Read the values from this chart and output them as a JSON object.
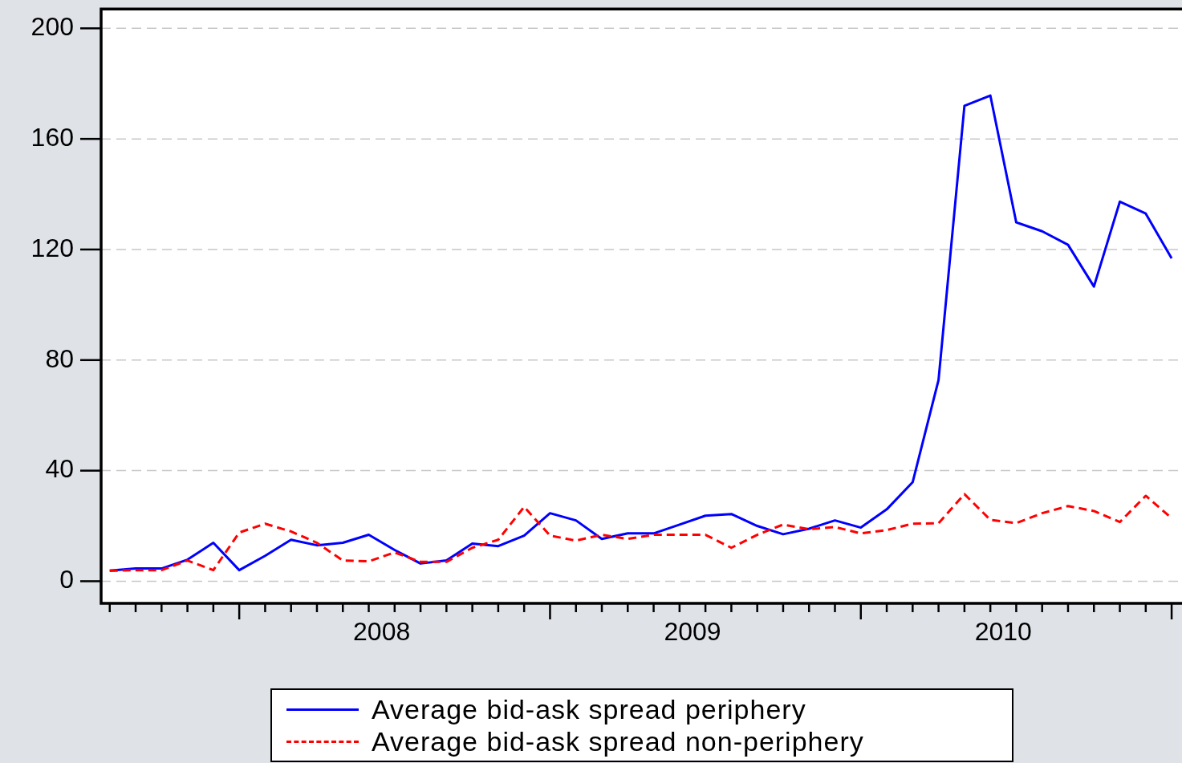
{
  "chart_data": {
    "type": "line",
    "x": [
      "2007-08",
      "2007-09",
      "2007-10",
      "2007-11",
      "2007-12",
      "2008-01",
      "2008-02",
      "2008-03",
      "2008-04",
      "2008-05",
      "2008-06",
      "2008-07",
      "2008-08",
      "2008-09",
      "2008-10",
      "2008-11",
      "2008-12",
      "2009-01",
      "2009-02",
      "2009-03",
      "2009-04",
      "2009-05",
      "2009-06",
      "2009-07",
      "2009-08",
      "2009-09",
      "2009-10",
      "2009-11",
      "2009-12",
      "2010-01",
      "2010-02",
      "2010-03",
      "2010-04",
      "2010-05",
      "2010-06",
      "2010-07",
      "2010-08",
      "2010-09",
      "2010-10",
      "2010-11",
      "2010-12",
      "2011-01"
    ],
    "series": [
      {
        "name": "Average bid-ask spread periphery",
        "color": "#0000ff",
        "line_style": "solid",
        "values": [
          3.8,
          4.6,
          4.6,
          7.8,
          13.9,
          4,
          9.2,
          15,
          13,
          13.9,
          16.8,
          11.3,
          6.4,
          7.5,
          13.6,
          12.7,
          16.5,
          24.6,
          22,
          15.3,
          17.3,
          17.3,
          20.5,
          23.7,
          24.3,
          20,
          17,
          19,
          22,
          19.4,
          26,
          35.8,
          72.8,
          172,
          175.7,
          129.8,
          126.6,
          121.7,
          106.6,
          137.3,
          133,
          116.8
        ]
      },
      {
        "name": "Average bid-ask spread non-periphery",
        "color": "#ff0000",
        "line_style": "dashed",
        "values": [
          3.8,
          4,
          4,
          7.5,
          4,
          17.6,
          20.8,
          18,
          13.9,
          7.5,
          7.2,
          10.4,
          7,
          7,
          12.1,
          15,
          26.9,
          16.5,
          14.7,
          16.8,
          15.3,
          16.8,
          16.8,
          16.8,
          12.1,
          16.8,
          20.5,
          18.8,
          19.6,
          17.3,
          18.5,
          20.8,
          21,
          31.5,
          22.2,
          21,
          24.6,
          27.2,
          25.4,
          21.4,
          30.9,
          22.8
        ]
      }
    ],
    "ylim": [
      -8,
      207
    ],
    "yticks": [
      0,
      40,
      80,
      120,
      160,
      200
    ],
    "xlim": [
      "2007-07-21",
      "2011-01-13"
    ],
    "xticks": [
      {
        "value": "2007-08",
        "label": null
      },
      {
        "value": "2007-09",
        "label": null
      },
      {
        "value": "2007-10",
        "label": null
      },
      {
        "value": "2007-11",
        "label": null
      },
      {
        "value": "2007-12",
        "label": null
      },
      {
        "value": "2008-01",
        "label": null
      },
      {
        "value": "2008-02",
        "label": null
      },
      {
        "value": "2008-03",
        "label": null
      },
      {
        "value": "2008-04",
        "label": null
      },
      {
        "value": "2008-05",
        "label": null
      },
      {
        "value": "2008-06",
        "label": null
      },
      {
        "value": "2008-07",
        "label": null
      },
      {
        "value": "2008-08",
        "label": null
      },
      {
        "value": "2008-09",
        "label": null
      },
      {
        "value": "2008-10",
        "label": null
      },
      {
        "value": "2008-11",
        "label": null
      },
      {
        "value": "2008-12",
        "label": null
      },
      {
        "value": "2009-01",
        "label": null
      },
      {
        "value": "2009-02",
        "label": null
      },
      {
        "value": "2009-03",
        "label": null
      },
      {
        "value": "2009-04",
        "label": null
      },
      {
        "value": "2009-05",
        "label": null
      },
      {
        "value": "2009-06",
        "label": null
      },
      {
        "value": "2009-07",
        "label": null
      },
      {
        "value": "2009-08",
        "label": null
      },
      {
        "value": "2009-09",
        "label": null
      },
      {
        "value": "2009-10",
        "label": null
      },
      {
        "value": "2009-11",
        "label": null
      },
      {
        "value": "2009-12",
        "label": null
      },
      {
        "value": "2010-01",
        "label": null
      },
      {
        "value": "2010-02",
        "label": null
      },
      {
        "value": "2010-03",
        "label": null
      },
      {
        "value": "2010-04",
        "label": null
      },
      {
        "value": "2010-05",
        "label": null
      },
      {
        "value": "2010-06",
        "label": null
      },
      {
        "value": "2010-07",
        "label": null
      },
      {
        "value": "2010-08",
        "label": null
      },
      {
        "value": "2010-09",
        "label": null
      },
      {
        "value": "2010-10",
        "label": null
      },
      {
        "value": "2010-11",
        "label": null
      },
      {
        "value": "2010-12",
        "label": null
      },
      {
        "value": "2011-01",
        "label": null
      },
      {
        "value": "2008-06-16",
        "label": "2008"
      },
      {
        "value": "2009-06-16",
        "label": "2009"
      },
      {
        "value": "2010-06-16",
        "label": "2010"
      }
    ],
    "grid": "y",
    "legend": "bottom",
    "marker": "none"
  }
}
